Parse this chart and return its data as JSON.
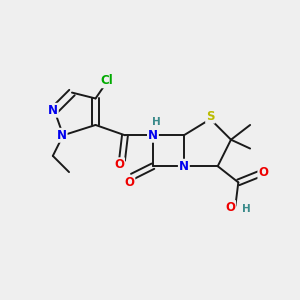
{
  "bg_color": "#efefef",
  "bond_color": "#1a1a1a",
  "atom_colors": {
    "N": "#0000ee",
    "O": "#ee0000",
    "S": "#bbbb00",
    "Cl": "#00aa00",
    "H_teal": "#3a8a8a",
    "C": "#1a1a1a"
  },
  "font_size": 8.5,
  "lw": 1.4
}
